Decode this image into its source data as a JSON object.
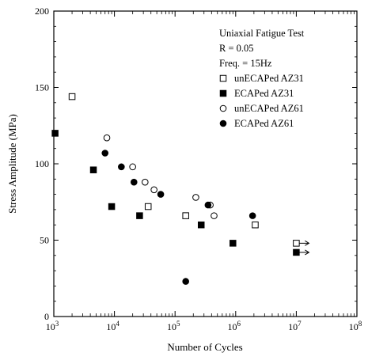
{
  "chart_data": {
    "type": "scatter",
    "title": "",
    "xlabel": "Number of Cycles",
    "ylabel": "Stress Amplitude (MPa)",
    "x_scale": "log",
    "xlim": [
      1000,
      100000000
    ],
    "ylim": [
      0,
      200
    ],
    "x_ticks": [
      {
        "value": 1000,
        "base": "10",
        "exp": "3"
      },
      {
        "value": 10000,
        "base": "10",
        "exp": "4"
      },
      {
        "value": 100000,
        "base": "10",
        "exp": "5"
      },
      {
        "value": 1000000,
        "base": "10",
        "exp": "6"
      },
      {
        "value": 10000000,
        "base": "10",
        "exp": "7"
      },
      {
        "value": 100000000,
        "base": "10",
        "exp": "8"
      }
    ],
    "y_ticks": [
      {
        "value": 0,
        "label": "0"
      },
      {
        "value": 50,
        "label": "50"
      },
      {
        "value": 100,
        "label": "100"
      },
      {
        "value": 150,
        "label": "150"
      },
      {
        "value": 200,
        "label": "200"
      }
    ],
    "grid": false,
    "legend_placement": "top-right",
    "annotations": [
      "Uniaxial Fatigue Test",
      "R = 0.05",
      "Freq. = 15Hz"
    ],
    "series": [
      {
        "name": "unECAPed AZ31",
        "marker": "square-open",
        "points": [
          {
            "x": 2000,
            "y": 144
          },
          {
            "x": 36000,
            "y": 72
          },
          {
            "x": 150000,
            "y": 66
          },
          {
            "x": 2100000,
            "y": 60
          },
          {
            "x": 10000000,
            "y": 48,
            "runout": true
          }
        ]
      },
      {
        "name": "ECAPed AZ31",
        "marker": "square-filled",
        "points": [
          {
            "x": 1050,
            "y": 120
          },
          {
            "x": 4500,
            "y": 96
          },
          {
            "x": 9000,
            "y": 72
          },
          {
            "x": 26000,
            "y": 66
          },
          {
            "x": 270000,
            "y": 60
          },
          {
            "x": 900000,
            "y": 48
          },
          {
            "x": 10000000,
            "y": 42,
            "runout": true
          }
        ]
      },
      {
        "name": "unECAPed AZ61",
        "marker": "circle-open",
        "points": [
          {
            "x": 7500,
            "y": 117
          },
          {
            "x": 20000,
            "y": 98
          },
          {
            "x": 32000,
            "y": 88
          },
          {
            "x": 45000,
            "y": 83
          },
          {
            "x": 220000,
            "y": 78
          },
          {
            "x": 380000,
            "y": 73
          },
          {
            "x": 440000,
            "y": 66
          }
        ]
      },
      {
        "name": "ECAPed AZ61",
        "marker": "circle-filled",
        "points": [
          {
            "x": 7000,
            "y": 107
          },
          {
            "x": 13000,
            "y": 98
          },
          {
            "x": 21000,
            "y": 88
          },
          {
            "x": 58000,
            "y": 80
          },
          {
            "x": 350000,
            "y": 73
          },
          {
            "x": 150000,
            "y": 23
          },
          {
            "x": 1900000,
            "y": 66
          }
        ]
      }
    ]
  }
}
